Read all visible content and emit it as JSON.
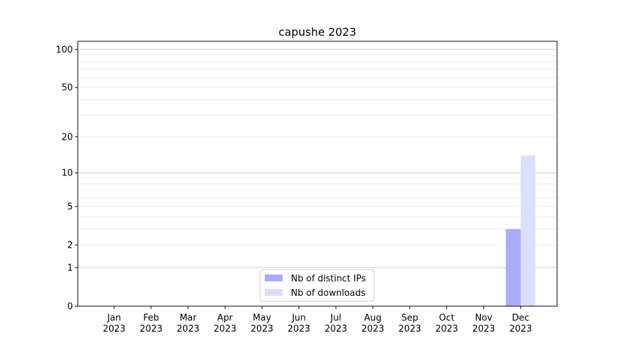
{
  "chart_data": {
    "type": "bar",
    "title": "capushe 2023",
    "xlabel": "",
    "ylabel": "",
    "categories": [
      "Jan\n2023",
      "Feb\n2023",
      "Mar\n2023",
      "Apr\n2023",
      "May\n2023",
      "Jun\n2023",
      "Jul\n2023",
      "Aug\n2023",
      "Sep\n2023",
      "Oct\n2023",
      "Nov\n2023",
      "Dec\n2023"
    ],
    "series": [
      {
        "name": "Nb of distinct IPs",
        "color": "#aaaaff",
        "values": [
          0,
          0,
          0,
          0,
          0,
          0,
          0,
          0,
          0,
          0,
          0,
          3
        ]
      },
      {
        "name": "Nb of downloads",
        "color": "#ddddff",
        "values": [
          0,
          0,
          0,
          0,
          0,
          0,
          0,
          0,
          0,
          0,
          0,
          14
        ]
      }
    ],
    "yscale": "symlog (log10(1+y))",
    "ylim": [
      0,
      116
    ],
    "yticks": [
      0,
      1,
      2,
      5,
      10,
      20,
      50,
      100
    ],
    "ytick_labels": [
      "0",
      "1",
      "2",
      "5",
      "10",
      "20",
      "50",
      "100"
    ],
    "grid": true,
    "legend_position": "bottom-center"
  }
}
